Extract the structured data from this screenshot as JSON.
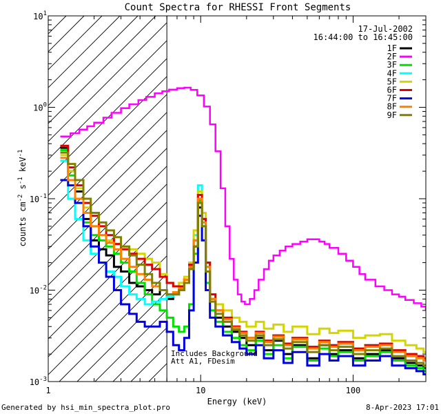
{
  "chart_data": {
    "type": "line",
    "title": "Count Spectra for RHESSI Front Segments",
    "xlabel": "Energy (keV)",
    "ylabel_base": "counts cm",
    "ylabel_sup1": "-2",
    "ylabel_mid1": " s",
    "ylabel_sup2": "-1",
    "ylabel_mid2": " keV",
    "ylabel_sup3": "-1",
    "xscale": "log",
    "yscale": "log",
    "xlim": [
      1,
      300
    ],
    "ylim": [
      0.001,
      10
    ],
    "x_ticks": [
      {
        "value": 1,
        "label": "1"
      },
      {
        "value": 10,
        "label": "10"
      },
      {
        "value": 100,
        "label": "100"
      }
    ],
    "y_ticks": [
      {
        "value": 0.001,
        "base": "10",
        "exp": "-3"
      },
      {
        "value": 0.01,
        "base": "10",
        "exp": "-2"
      },
      {
        "value": 0.1,
        "base": "10",
        "exp": "-1"
      },
      {
        "value": 1,
        "base": "10",
        "exp": "0"
      },
      {
        "value": 10,
        "base": "10",
        "exp": "1"
      }
    ],
    "date": "17-Jul-2002",
    "time_range": "16:44:00 to 16:45:00",
    "hatched_region_max_kev": 6,
    "annotation_line1": "Includes Background",
    "annotation_line2": "Att A1, FDesim",
    "series": [
      {
        "name": "1F",
        "color": "#000000",
        "x": [
          1.2,
          1.35,
          1.5,
          1.7,
          1.9,
          2.15,
          2.4,
          2.7,
          3.0,
          3.4,
          3.8,
          4.3,
          4.8,
          5.4,
          6.0,
          6.6,
          7.2,
          7.8,
          8.4,
          9.0,
          9.6,
          10.2,
          10.8,
          11.5,
          12.5,
          14,
          16,
          18,
          20,
          23,
          26,
          30,
          35,
          40,
          50,
          60,
          70,
          80,
          100,
          120,
          150,
          180,
          220,
          260,
          290
        ],
        "y": [
          0.36,
          0.2,
          0.12,
          0.06,
          0.035,
          0.028,
          0.024,
          0.018,
          0.016,
          0.012,
          0.011,
          0.01,
          0.009,
          0.01,
          0.008,
          0.009,
          0.01,
          0.013,
          0.018,
          0.03,
          0.08,
          0.06,
          0.02,
          0.008,
          0.005,
          0.004,
          0.0035,
          0.003,
          0.0025,
          0.003,
          0.0022,
          0.0028,
          0.002,
          0.0025,
          0.0018,
          0.0025,
          0.002,
          0.0022,
          0.0018,
          0.002,
          0.0022,
          0.0018,
          0.0016,
          0.0015,
          0.0014
        ]
      },
      {
        "name": "2F",
        "color": "#ff00ff",
        "x": [
          1.2,
          1.4,
          1.6,
          1.8,
          2.0,
          2.3,
          2.6,
          3.0,
          3.4,
          3.9,
          4.4,
          5.0,
          5.6,
          6.2,
          7.0,
          7.8,
          8.6,
          9.5,
          10.5,
          11.5,
          12.5,
          13.5,
          14.5,
          15.5,
          16.5,
          17.5,
          18.5,
          19.5,
          21,
          22.5,
          24,
          26,
          28,
          30,
          33,
          36,
          40,
          45,
          50,
          55,
          60,
          65,
          70,
          80,
          90,
          100,
          110,
          120,
          140,
          160,
          180,
          200,
          220,
          250,
          280,
          300
        ],
        "y": [
          0.48,
          0.52,
          0.57,
          0.62,
          0.68,
          0.77,
          0.87,
          0.98,
          1.08,
          1.2,
          1.3,
          1.42,
          1.5,
          1.56,
          1.62,
          1.64,
          1.55,
          1.35,
          1.02,
          0.65,
          0.33,
          0.13,
          0.05,
          0.022,
          0.013,
          0.009,
          0.0075,
          0.007,
          0.008,
          0.01,
          0.013,
          0.017,
          0.021,
          0.024,
          0.027,
          0.03,
          0.032,
          0.034,
          0.036,
          0.036,
          0.034,
          0.032,
          0.029,
          0.025,
          0.021,
          0.018,
          0.015,
          0.013,
          0.011,
          0.01,
          0.009,
          0.0085,
          0.0078,
          0.0072,
          0.0066,
          0.0062
        ]
      },
      {
        "name": "3F",
        "color": "#00e000",
        "x": [
          1.2,
          1.35,
          1.5,
          1.7,
          1.9,
          2.15,
          2.4,
          2.7,
          3.0,
          3.4,
          3.8,
          4.3,
          4.8,
          5.4,
          6.0,
          6.6,
          7.2,
          7.8,
          8.4,
          9.0,
          9.6,
          10.2,
          10.8,
          11.5,
          12.5,
          14,
          16,
          18,
          20,
          23,
          26,
          30,
          35,
          40,
          50,
          60,
          70,
          80,
          100,
          120,
          150,
          180,
          220,
          260,
          290
        ],
        "y": [
          0.34,
          0.18,
          0.1,
          0.055,
          0.04,
          0.035,
          0.03,
          0.025,
          0.02,
          0.016,
          0.012,
          0.009,
          0.007,
          0.006,
          0.005,
          0.004,
          0.0035,
          0.004,
          0.007,
          0.025,
          0.095,
          0.05,
          0.012,
          0.006,
          0.0045,
          0.0035,
          0.003,
          0.0025,
          0.0022,
          0.0028,
          0.002,
          0.0025,
          0.0018,
          0.0024,
          0.0017,
          0.0023,
          0.0019,
          0.0021,
          0.0017,
          0.0019,
          0.0021,
          0.0017,
          0.0015,
          0.0014,
          0.0013
        ]
      },
      {
        "name": "4F",
        "color": "#00ffff",
        "x": [
          1.2,
          1.35,
          1.5,
          1.7,
          1.9,
          2.15,
          2.4,
          2.7,
          3.0,
          3.4,
          3.8,
          4.3,
          4.8,
          5.4,
          6.0,
          6.6,
          7.2,
          7.8,
          8.4,
          9.0,
          9.6,
          10.2,
          10.8,
          11.5,
          12.5,
          14,
          16,
          18,
          20,
          23,
          26,
          30,
          35,
          40,
          50,
          60,
          70,
          80,
          100,
          120,
          150,
          180,
          220,
          260,
          290
        ],
        "y": [
          0.26,
          0.1,
          0.06,
          0.035,
          0.025,
          0.02,
          0.016,
          0.014,
          0.011,
          0.009,
          0.008,
          0.007,
          0.0075,
          0.008,
          0.0085,
          0.009,
          0.01,
          0.012,
          0.02,
          0.04,
          0.14,
          0.06,
          0.018,
          0.008,
          0.006,
          0.005,
          0.004,
          0.0035,
          0.003,
          0.0035,
          0.0028,
          0.0032,
          0.0026,
          0.003,
          0.0024,
          0.0028,
          0.0025,
          0.0027,
          0.0023,
          0.0025,
          0.0026,
          0.0022,
          0.002,
          0.0019,
          0.0018
        ]
      },
      {
        "name": "5F",
        "color": "#d4d400",
        "x": [
          1.2,
          1.35,
          1.5,
          1.7,
          1.9,
          2.15,
          2.4,
          2.7,
          3.0,
          3.4,
          3.8,
          4.3,
          4.8,
          5.4,
          6.0,
          6.6,
          7.2,
          7.8,
          8.4,
          9.0,
          9.6,
          10.2,
          10.8,
          11.5,
          12.5,
          14,
          16,
          18,
          20,
          23,
          26,
          30,
          35,
          40,
          50,
          60,
          70,
          80,
          100,
          120,
          150,
          180,
          220,
          260,
          290
        ],
        "y": [
          0.3,
          0.2,
          0.13,
          0.08,
          0.05,
          0.04,
          0.035,
          0.032,
          0.03,
          0.028,
          0.025,
          0.022,
          0.02,
          0.015,
          0.012,
          0.011,
          0.012,
          0.014,
          0.02,
          0.045,
          0.12,
          0.07,
          0.02,
          0.009,
          0.007,
          0.006,
          0.005,
          0.0045,
          0.004,
          0.0045,
          0.0038,
          0.0042,
          0.0035,
          0.004,
          0.0033,
          0.0038,
          0.0034,
          0.0036,
          0.003,
          0.0032,
          0.0033,
          0.0028,
          0.0025,
          0.0023,
          0.0021
        ]
      },
      {
        "name": "6F",
        "color": "#e00000",
        "x": [
          1.2,
          1.35,
          1.5,
          1.7,
          1.9,
          2.15,
          2.4,
          2.7,
          3.0,
          3.4,
          3.8,
          4.3,
          4.8,
          5.4,
          6.0,
          6.6,
          7.2,
          7.8,
          8.4,
          9.0,
          9.6,
          10.2,
          10.8,
          11.5,
          12.5,
          14,
          16,
          18,
          20,
          23,
          26,
          30,
          35,
          40,
          50,
          60,
          70,
          80,
          100,
          120,
          150,
          180,
          220,
          260,
          290
        ],
        "y": [
          0.38,
          0.22,
          0.14,
          0.09,
          0.065,
          0.05,
          0.04,
          0.032,
          0.028,
          0.025,
          0.022,
          0.019,
          0.017,
          0.014,
          0.012,
          0.011,
          0.011,
          0.013,
          0.019,
          0.035,
          0.11,
          0.06,
          0.02,
          0.009,
          0.006,
          0.005,
          0.004,
          0.0035,
          0.003,
          0.0035,
          0.0028,
          0.0032,
          0.0026,
          0.003,
          0.0024,
          0.0028,
          0.0025,
          0.0027,
          0.0023,
          0.0025,
          0.0026,
          0.0022,
          0.002,
          0.0019,
          0.0018
        ]
      },
      {
        "name": "7F",
        "color": "#0000e0",
        "x": [
          1.2,
          1.35,
          1.5,
          1.7,
          1.9,
          2.15,
          2.4,
          2.7,
          3.0,
          3.4,
          3.8,
          4.3,
          4.8,
          5.4,
          6.0,
          6.6,
          7.2,
          7.8,
          8.4,
          9.0,
          9.6,
          10.2,
          10.8,
          11.5,
          12.5,
          14,
          16,
          18,
          20,
          23,
          26,
          30,
          35,
          40,
          50,
          60,
          70,
          80,
          100,
          120,
          150,
          180,
          220,
          260,
          290
        ],
        "y": [
          0.16,
          0.14,
          0.09,
          0.05,
          0.03,
          0.02,
          0.014,
          0.01,
          0.007,
          0.0055,
          0.0045,
          0.004,
          0.004,
          0.0045,
          0.0035,
          0.0025,
          0.0022,
          0.003,
          0.006,
          0.02,
          0.065,
          0.035,
          0.01,
          0.005,
          0.004,
          0.0032,
          0.0027,
          0.0023,
          0.002,
          0.0025,
          0.0018,
          0.0022,
          0.0016,
          0.0021,
          0.0015,
          0.002,
          0.0017,
          0.0019,
          0.0015,
          0.0017,
          0.0019,
          0.0015,
          0.0014,
          0.0013,
          0.0012
        ]
      },
      {
        "name": "8F",
        "color": "#ff8000",
        "x": [
          1.2,
          1.35,
          1.5,
          1.7,
          1.9,
          2.15,
          2.4,
          2.7,
          3.0,
          3.4,
          3.8,
          4.3,
          4.8,
          5.4,
          6.0,
          6.6,
          7.2,
          7.8,
          8.4,
          9.0,
          9.6,
          10.2,
          10.8,
          11.5,
          12.5,
          14,
          16,
          18,
          20,
          23,
          26,
          30,
          35,
          40,
          50,
          60,
          70,
          80,
          100,
          120,
          150,
          180,
          220,
          260,
          290
        ],
        "y": [
          0.28,
          0.16,
          0.1,
          0.07,
          0.05,
          0.04,
          0.033,
          0.028,
          0.022,
          0.018,
          0.015,
          0.013,
          0.011,
          0.01,
          0.009,
          0.0095,
          0.0105,
          0.013,
          0.018,
          0.035,
          0.1,
          0.055,
          0.018,
          0.008,
          0.006,
          0.0048,
          0.0039,
          0.0034,
          0.003,
          0.0034,
          0.0027,
          0.0031,
          0.0025,
          0.0029,
          0.0023,
          0.0027,
          0.0024,
          0.0026,
          0.0022,
          0.0024,
          0.0025,
          0.0021,
          0.0019,
          0.0018,
          0.0017
        ]
      },
      {
        "name": "9F",
        "color": "#808000",
        "x": [
          1.2,
          1.35,
          1.5,
          1.7,
          1.9,
          2.15,
          2.4,
          2.7,
          3.0,
          3.4,
          3.8,
          4.3,
          4.8,
          5.4,
          6.0,
          6.6,
          7.2,
          7.8,
          8.4,
          9.0,
          9.6,
          10.2,
          10.8,
          11.5,
          12.5,
          14,
          16,
          18,
          20,
          23,
          26,
          30,
          35,
          40,
          50,
          60,
          70,
          80,
          100,
          120,
          150,
          180,
          220,
          260,
          290
        ],
        "y": [
          0.32,
          0.24,
          0.16,
          0.1,
          0.07,
          0.055,
          0.045,
          0.038,
          0.03,
          0.024,
          0.019,
          0.015,
          0.012,
          0.01,
          0.009,
          0.009,
          0.01,
          0.012,
          0.017,
          0.03,
          0.09,
          0.05,
          0.016,
          0.0075,
          0.0055,
          0.0045,
          0.0037,
          0.0032,
          0.0028,
          0.0032,
          0.0025,
          0.0029,
          0.0023,
          0.0027,
          0.0021,
          0.0025,
          0.0022,
          0.0024,
          0.002,
          0.0022,
          0.0023,
          0.0019,
          0.0017,
          0.0016,
          0.0015
        ]
      }
    ]
  },
  "footer": {
    "left": "Generated by hsi_min_spectra_plot.pro",
    "right": "8-Apr-2023 17:01"
  }
}
